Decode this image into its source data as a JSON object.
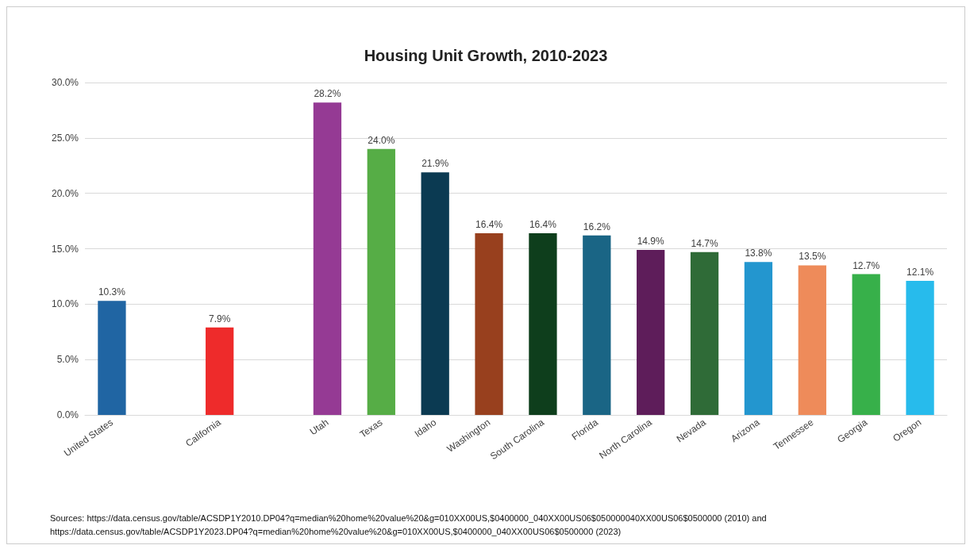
{
  "chart_data": {
    "type": "bar",
    "title": "Housing Unit Growth, 2010-2023",
    "categories": [
      "United States",
      null,
      "California",
      null,
      "Utah",
      "Texas",
      "Idaho",
      "Washington",
      "South Carolina",
      "Florida",
      "North Carolina",
      "Nevada",
      "Arizona",
      "Tennessee",
      "Georgia",
      "Oregon"
    ],
    "values": [
      10.3,
      null,
      7.9,
      null,
      28.2,
      24.0,
      21.9,
      16.4,
      16.4,
      16.2,
      14.9,
      14.7,
      13.8,
      13.5,
      12.7,
      12.1
    ],
    "value_labels": [
      "10.3%",
      null,
      "7.9%",
      null,
      "28.2%",
      "24.0%",
      "21.9%",
      "16.4%",
      "16.4%",
      "16.2%",
      "14.9%",
      "14.7%",
      "13.8%",
      "13.5%",
      "12.7%",
      "12.1%"
    ],
    "colors": [
      "#2065a3",
      null,
      "#ee2b2b",
      null,
      "#953a94",
      "#56ad46",
      "#0b3a52",
      "#98401e",
      "#0e3e1c",
      "#1a6585",
      "#5e1d5a",
      "#2f6b37",
      "#2396cf",
      "#ee8b5a",
      "#37b04a",
      "#27bbec"
    ],
    "ylim": [
      0,
      30
    ],
    "yticks": [
      {
        "value": 0,
        "label": "0.0%"
      },
      {
        "value": 5,
        "label": "5.0%"
      },
      {
        "value": 10,
        "label": "10.0%"
      },
      {
        "value": 15,
        "label": "15.0%"
      },
      {
        "value": 20,
        "label": "20.0%"
      },
      {
        "value": 25,
        "label": "25.0%"
      },
      {
        "value": 30,
        "label": "30.0%"
      }
    ],
    "grid": "y",
    "annotations": [
      "Sources: https://data.census.gov/table/ACSDP1Y2010.DP04?q=median%20home%20value%20&g=010XX00US,$0400000_040XX00US06$050000040XX00US06$0500000 (2010) and",
      "https://data.census.gov/table/ACSDP1Y2023.DP04?q=median%20home%20value%20&g=010XX00US,$0400000_040XX00US06$0500000 (2023)"
    ]
  }
}
